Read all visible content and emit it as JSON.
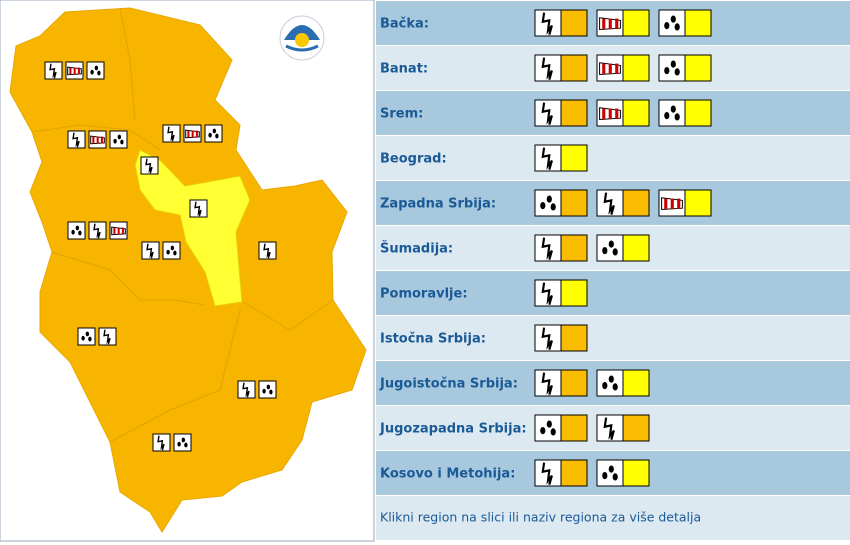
{
  "regions": [
    {
      "name": "Bačka:",
      "warnings": [
        {
          "type": "thunder",
          "color": "#f9bc00"
        },
        {
          "type": "wind",
          "color": "#ffff00"
        },
        {
          "type": "rain",
          "color": "#ffff00"
        }
      ]
    },
    {
      "name": "Banat:",
      "warnings": [
        {
          "type": "thunder",
          "color": "#f9bc00"
        },
        {
          "type": "wind",
          "color": "#ffff00"
        },
        {
          "type": "rain",
          "color": "#ffff00"
        }
      ]
    },
    {
      "name": "Srem:",
      "warnings": [
        {
          "type": "thunder",
          "color": "#f9bc00"
        },
        {
          "type": "wind",
          "color": "#ffff00"
        },
        {
          "type": "rain",
          "color": "#ffff00"
        }
      ]
    },
    {
      "name": "Beograd:",
      "warnings": [
        {
          "type": "thunder",
          "color": "#ffff00"
        }
      ]
    },
    {
      "name": "Zapadna Srbija:",
      "warnings": [
        {
          "type": "rain",
          "color": "#f9bc00"
        },
        {
          "type": "thunder",
          "color": "#f9bc00"
        },
        {
          "type": "wind",
          "color": "#ffff00"
        }
      ]
    },
    {
      "name": "Šumadija:",
      "warnings": [
        {
          "type": "thunder",
          "color": "#f9bc00"
        },
        {
          "type": "rain",
          "color": "#ffff00"
        }
      ]
    },
    {
      "name": "Pomoravlje:",
      "warnings": [
        {
          "type": "thunder",
          "color": "#ffff00"
        }
      ]
    },
    {
      "name": "Istočna Srbija:",
      "warnings": [
        {
          "type": "thunder",
          "color": "#f9bc00"
        }
      ]
    },
    {
      "name": "Jugoistočna Srbija:",
      "warnings": [
        {
          "type": "thunder",
          "color": "#f9bc00"
        },
        {
          "type": "rain",
          "color": "#ffff00"
        }
      ]
    },
    {
      "name": "Jugozapadna Srbija:",
      "warnings": [
        {
          "type": "rain",
          "color": "#f9bc00"
        },
        {
          "type": "thunder",
          "color": "#f9bc00"
        }
      ]
    },
    {
      "name": "Kosovo i Metohija:",
      "warnings": [
        {
          "type": "thunder",
          "color": "#f9bc00"
        },
        {
          "type": "rain",
          "color": "#ffff00"
        }
      ]
    }
  ],
  "footer": "Klikni region na slici ili naziv regiona za više detalja"
}
